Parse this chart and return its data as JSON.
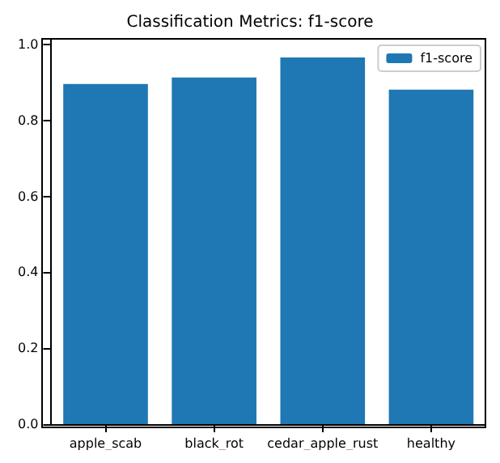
{
  "chart_data": {
    "type": "bar",
    "title": "Classification Metrics: f1-score",
    "categories": [
      "apple_scab",
      "black_rot",
      "cedar_apple_rust",
      "healthy"
    ],
    "series": [
      {
        "name": "f1-score",
        "color": "#1f77b4",
        "values": [
          0.896,
          0.913,
          0.966,
          0.881
        ]
      }
    ],
    "ylim": [
      0,
      1.015
    ],
    "yticks": [
      {
        "value": 0,
        "label": "0.0"
      },
      0.2,
      0.4,
      0.6,
      0.8,
      {
        "value": 1,
        "label": "1.0"
      }
    ],
    "grid": false,
    "legend": "top right"
  }
}
